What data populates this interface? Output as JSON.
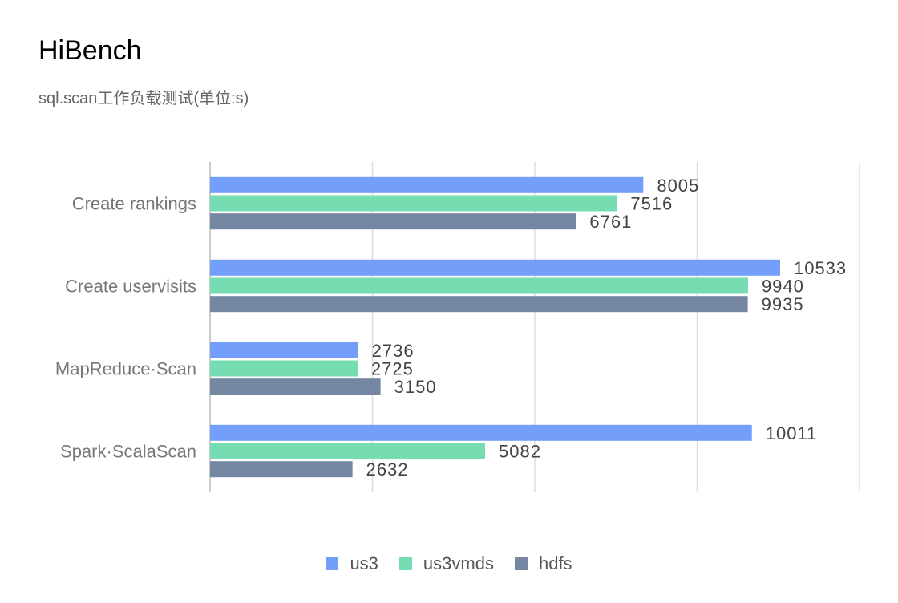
{
  "title": "HiBench",
  "subtitle": "sql.scan工作负载测试(单位:s)",
  "chart_data": {
    "type": "bar",
    "orientation": "horizontal",
    "categories": [
      "Create rankings",
      "Create uservisits",
      "MapReduce·Scan",
      "Spark·ScalaScan"
    ],
    "series": [
      {
        "name": "us3",
        "color": "#739ef9",
        "values": [
          8005,
          10533,
          2736,
          10011
        ]
      },
      {
        "name": "us3vmds",
        "color": "#76ddb2",
        "values": [
          7516,
          9940,
          2725,
          5082
        ]
      },
      {
        "name": "hdfs",
        "color": "#7486a2",
        "values": [
          6761,
          9935,
          3150,
          2632
        ]
      }
    ],
    "xlim": [
      0,
      12000
    ],
    "grid": true,
    "legend_position": "bottom-center"
  }
}
